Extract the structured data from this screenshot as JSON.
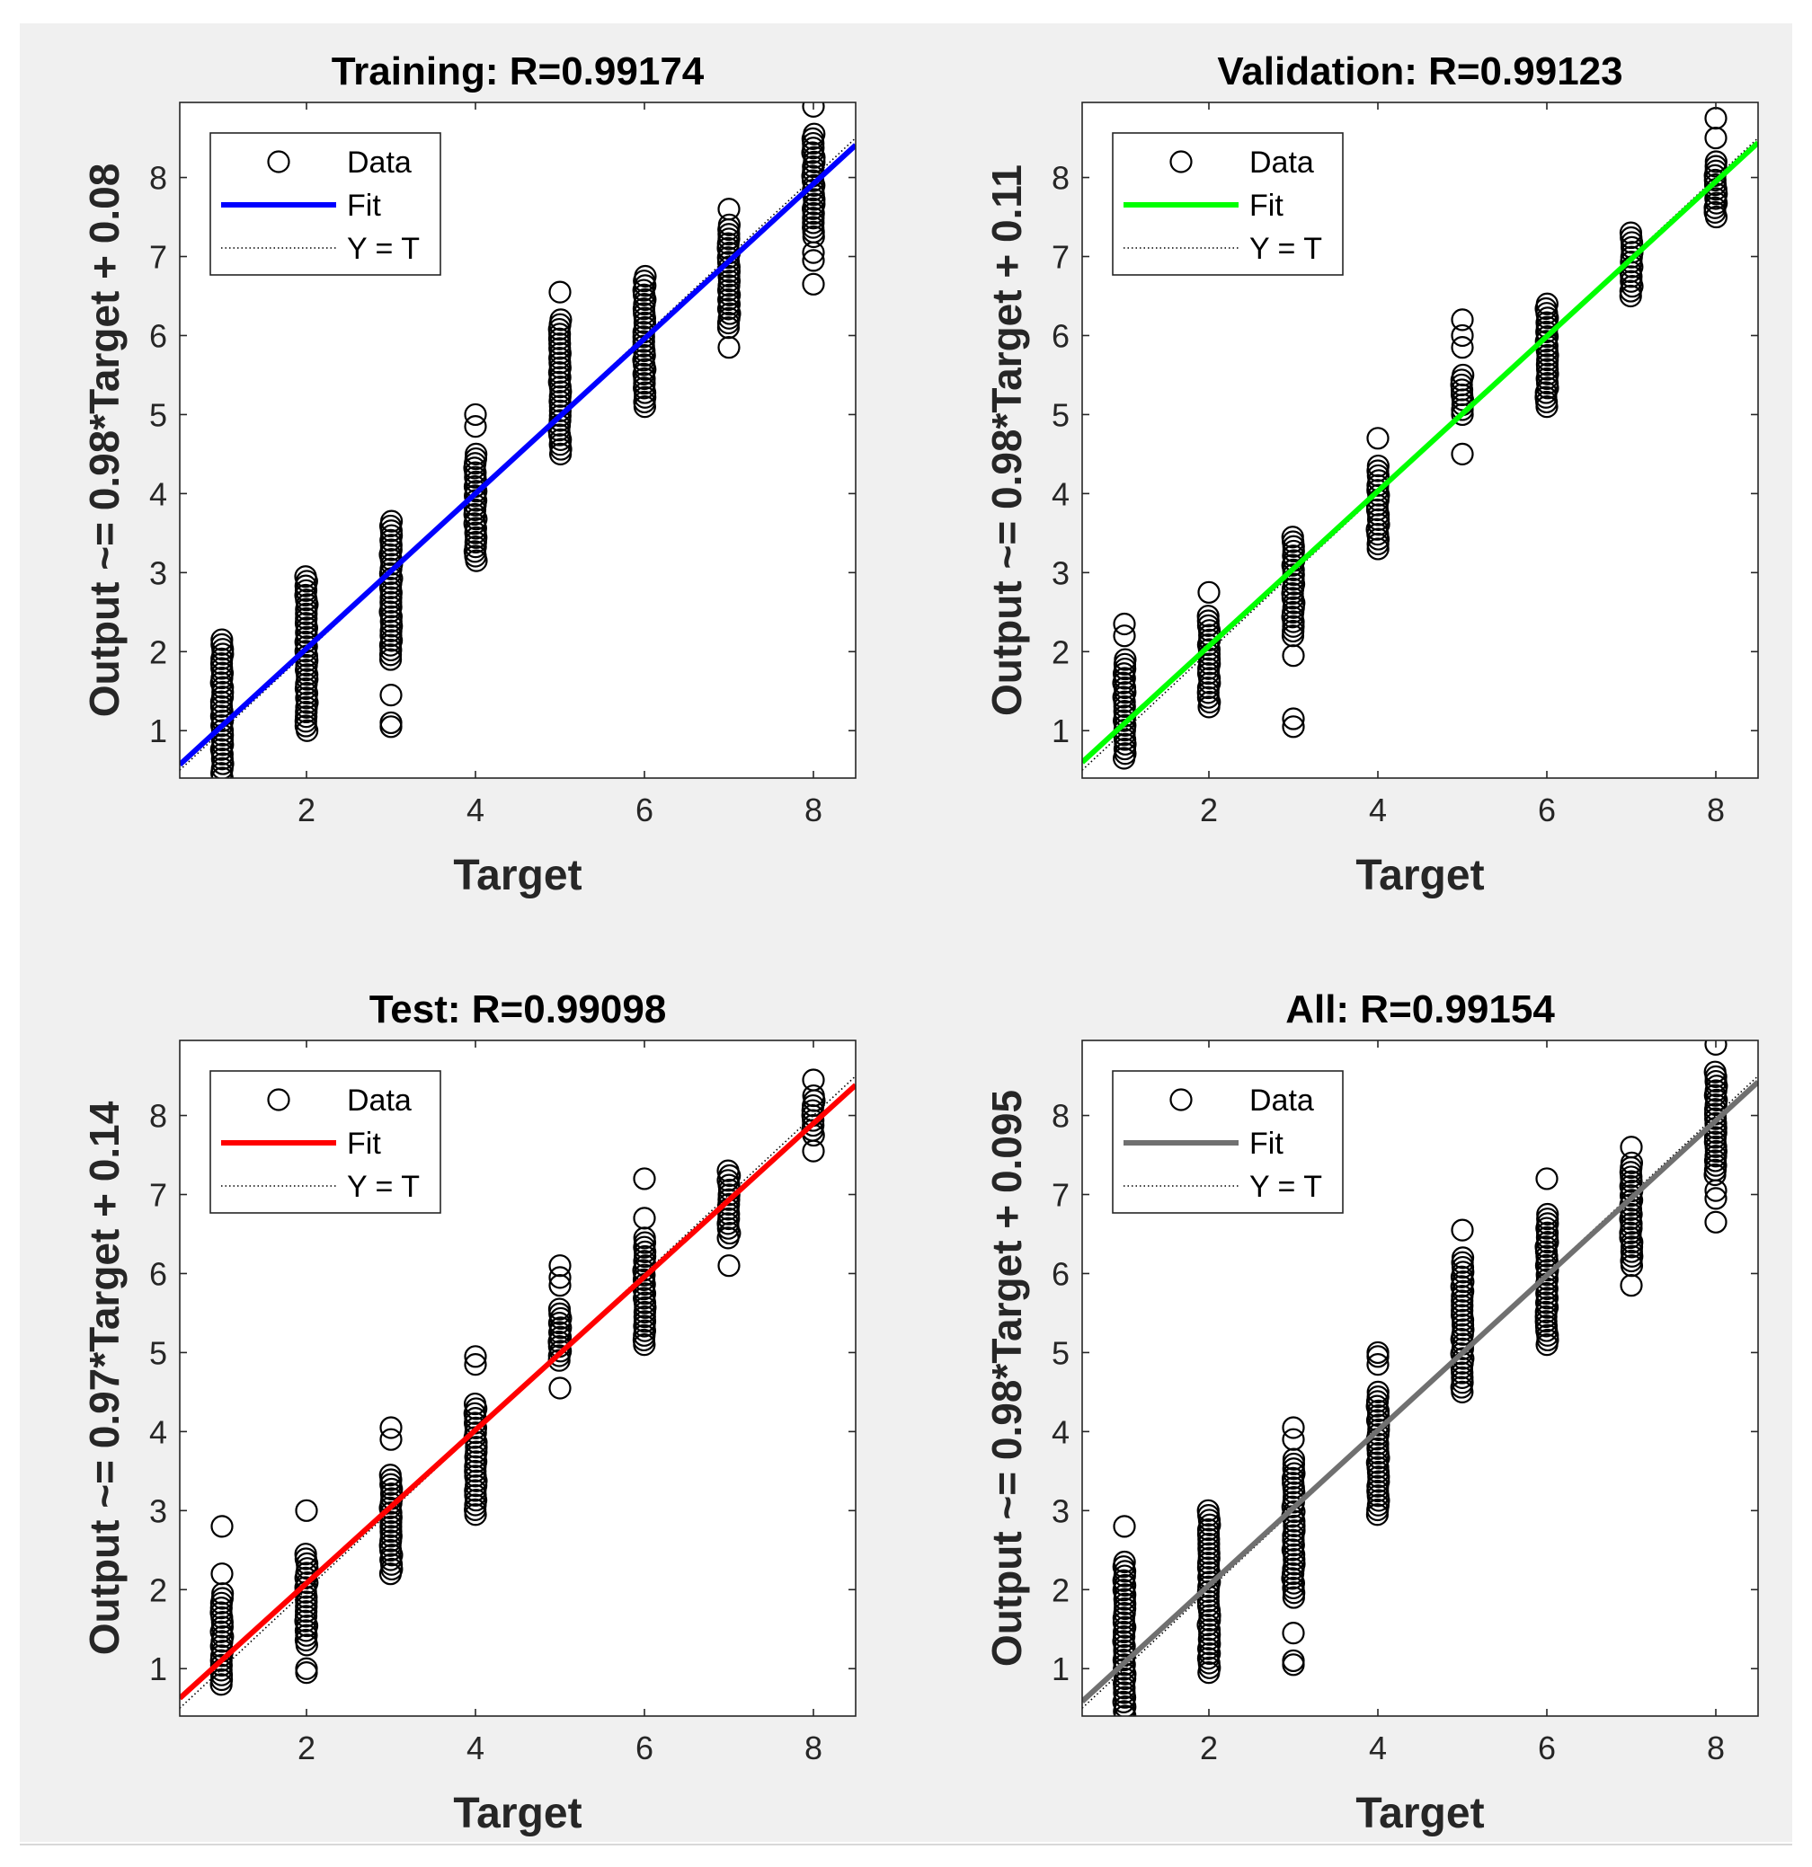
{
  "figure": {
    "background": "#f0f0f0",
    "marker_color": "#000000",
    "axes_background": "#ffffff"
  },
  "chart_data": [
    {
      "type": "scatter",
      "title": "Training: R=0.99174",
      "xlabel": "Target",
      "ylabel": "Output ~= 0.98*Target + 0.08",
      "xlim": [
        0.5,
        8.5
      ],
      "ylim": [
        0.4,
        8.95
      ],
      "xticks": [
        2,
        4,
        6,
        8
      ],
      "yticks": [
        1,
        2,
        3,
        4,
        5,
        6,
        7,
        8
      ],
      "fit": {
        "slope": 0.98,
        "intercept": 0.08,
        "color": "#0000ff"
      },
      "legend": {
        "data": "Data",
        "fit": "Fit",
        "identity": "Y = T",
        "position": "top-left"
      },
      "scatter": [
        {
          "x": 1,
          "ymin": 0.4,
          "ymax": 2.15,
          "outliers": []
        },
        {
          "x": 2,
          "ymin": 1.0,
          "ymax": 2.95,
          "outliers": []
        },
        {
          "x": 3,
          "ymin": 1.9,
          "ymax": 3.65,
          "outliers": [
            1.05,
            1.1,
            1.45
          ]
        },
        {
          "x": 4,
          "ymin": 3.15,
          "ymax": 4.5,
          "outliers": [
            4.85,
            5.0
          ]
        },
        {
          "x": 5,
          "ymin": 4.5,
          "ymax": 6.2,
          "outliers": [
            6.55
          ]
        },
        {
          "x": 6,
          "ymin": 5.1,
          "ymax": 6.75,
          "outliers": []
        },
        {
          "x": 7,
          "ymin": 6.1,
          "ymax": 7.4,
          "outliers": [
            5.85,
            7.6
          ]
        },
        {
          "x": 8,
          "ymin": 7.25,
          "ymax": 8.55,
          "outliers": [
            6.65,
            6.95,
            7.05,
            8.9
          ]
        }
      ]
    },
    {
      "type": "scatter",
      "title": "Validation: R=0.99123",
      "xlabel": "Target",
      "ylabel": "Output ~= 0.98*Target + 0.11",
      "xlim": [
        0.5,
        8.5
      ],
      "ylim": [
        0.4,
        8.95
      ],
      "xticks": [
        2,
        4,
        6,
        8
      ],
      "yticks": [
        1,
        2,
        3,
        4,
        5,
        6,
        7,
        8
      ],
      "fit": {
        "slope": 0.98,
        "intercept": 0.11,
        "color": "#00ff00"
      },
      "legend": {
        "data": "Data",
        "fit": "Fit",
        "identity": "Y = T",
        "position": "top-left"
      },
      "scatter": [
        {
          "x": 1,
          "ymin": 0.65,
          "ymax": 1.9,
          "outliers": [
            2.2,
            2.35
          ]
        },
        {
          "x": 2,
          "ymin": 1.3,
          "ymax": 2.45,
          "outliers": [
            2.75
          ]
        },
        {
          "x": 3,
          "ymin": 2.2,
          "ymax": 3.45,
          "outliers": [
            1.05,
            1.15,
            1.95
          ]
        },
        {
          "x": 4,
          "ymin": 3.3,
          "ymax": 4.35,
          "outliers": [
            4.7
          ]
        },
        {
          "x": 5,
          "ymin": 5.0,
          "ymax": 5.5,
          "outliers": [
            4.5,
            5.85,
            6.0,
            6.2
          ]
        },
        {
          "x": 6,
          "ymin": 5.1,
          "ymax": 6.4,
          "outliers": []
        },
        {
          "x": 7,
          "ymin": 6.5,
          "ymax": 7.3,
          "outliers": []
        },
        {
          "x": 8,
          "ymin": 7.5,
          "ymax": 8.2,
          "outliers": [
            8.5,
            8.75
          ]
        }
      ]
    },
    {
      "type": "scatter",
      "title": "Test: R=0.99098",
      "xlabel": "Target",
      "ylabel": "Output ~= 0.97*Target + 0.14",
      "xlim": [
        0.5,
        8.5
      ],
      "ylim": [
        0.4,
        8.95
      ],
      "xticks": [
        2,
        4,
        6,
        8
      ],
      "yticks": [
        1,
        2,
        3,
        4,
        5,
        6,
        7,
        8
      ],
      "fit": {
        "slope": 0.97,
        "intercept": 0.14,
        "color": "#ff0000"
      },
      "legend": {
        "data": "Data",
        "fit": "Fit",
        "identity": "Y = T",
        "position": "top-left"
      },
      "scatter": [
        {
          "x": 1,
          "ymin": 0.8,
          "ymax": 1.95,
          "outliers": [
            2.2,
            2.8
          ]
        },
        {
          "x": 2,
          "ymin": 1.3,
          "ymax": 2.45,
          "outliers": [
            0.95,
            1.0,
            3.0
          ]
        },
        {
          "x": 3,
          "ymin": 2.2,
          "ymax": 3.45,
          "outliers": [
            3.9,
            4.05
          ]
        },
        {
          "x": 4,
          "ymin": 2.95,
          "ymax": 4.35,
          "outliers": [
            4.85,
            4.95
          ]
        },
        {
          "x": 5,
          "ymin": 4.9,
          "ymax": 5.55,
          "outliers": [
            4.55,
            5.85,
            5.95,
            6.1
          ]
        },
        {
          "x": 6,
          "ymin": 5.1,
          "ymax": 6.45,
          "outliers": [
            6.7,
            7.2
          ]
        },
        {
          "x": 7,
          "ymin": 6.45,
          "ymax": 7.3,
          "outliers": [
            6.1
          ]
        },
        {
          "x": 8,
          "ymin": 7.75,
          "ymax": 8.25,
          "outliers": [
            7.55,
            8.45
          ]
        }
      ]
    },
    {
      "type": "scatter",
      "title": "All: R=0.99154",
      "xlabel": "Target",
      "ylabel": "Output ~= 0.98*Target + 0.095",
      "xlim": [
        0.5,
        8.5
      ],
      "ylim": [
        0.4,
        8.95
      ],
      "xticks": [
        2,
        4,
        6,
        8
      ],
      "yticks": [
        1,
        2,
        3,
        4,
        5,
        6,
        7,
        8
      ],
      "fit": {
        "slope": 0.98,
        "intercept": 0.095,
        "color": "#707070"
      },
      "legend": {
        "data": "Data",
        "fit": "Fit",
        "identity": "Y = T",
        "position": "top-left"
      },
      "scatter": [
        {
          "x": 1,
          "ymin": 0.4,
          "ymax": 2.35,
          "outliers": [
            2.8
          ]
        },
        {
          "x": 2,
          "ymin": 0.95,
          "ymax": 3.0,
          "outliers": []
        },
        {
          "x": 3,
          "ymin": 1.9,
          "ymax": 3.65,
          "outliers": [
            1.05,
            1.1,
            1.45,
            3.9,
            4.05
          ]
        },
        {
          "x": 4,
          "ymin": 2.95,
          "ymax": 4.5,
          "outliers": [
            4.85,
            4.95,
            5.0
          ]
        },
        {
          "x": 5,
          "ymin": 4.5,
          "ymax": 6.2,
          "outliers": [
            6.55
          ]
        },
        {
          "x": 6,
          "ymin": 5.1,
          "ymax": 6.75,
          "outliers": [
            7.2
          ]
        },
        {
          "x": 7,
          "ymin": 6.1,
          "ymax": 7.4,
          "outliers": [
            5.85,
            7.6
          ]
        },
        {
          "x": 8,
          "ymin": 7.25,
          "ymax": 8.55,
          "outliers": [
            6.65,
            6.95,
            7.05,
            8.9
          ]
        }
      ]
    }
  ]
}
